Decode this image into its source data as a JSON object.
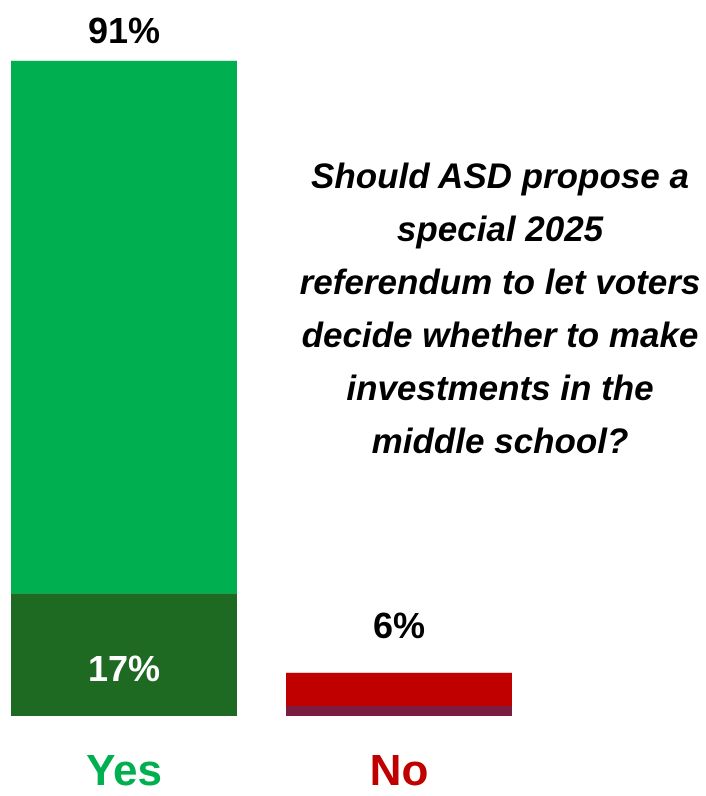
{
  "chart_data": {
    "type": "bar",
    "stacked": true,
    "categories": [
      "Yes",
      "No"
    ],
    "series": [
      {
        "values": [
          17,
          null
        ]
      },
      {
        "values": [
          74,
          6
        ]
      }
    ],
    "totals": [
      "91%",
      "6%"
    ],
    "inner_labels": [
      "17%",
      ""
    ],
    "ylim": [
      0,
      100
    ],
    "grid": false,
    "colors": {
      "yes_bottom": "#1e6a22",
      "yes_top": "#00b050",
      "no_bottom": "#7b1d3e",
      "no_top": "#c00000",
      "yes_label": "#00b050",
      "no_label": "#c00000"
    },
    "annotation": "Should ASD propose a special 2025 referendum to let voters decide whether to make investments in the middle school?"
  }
}
